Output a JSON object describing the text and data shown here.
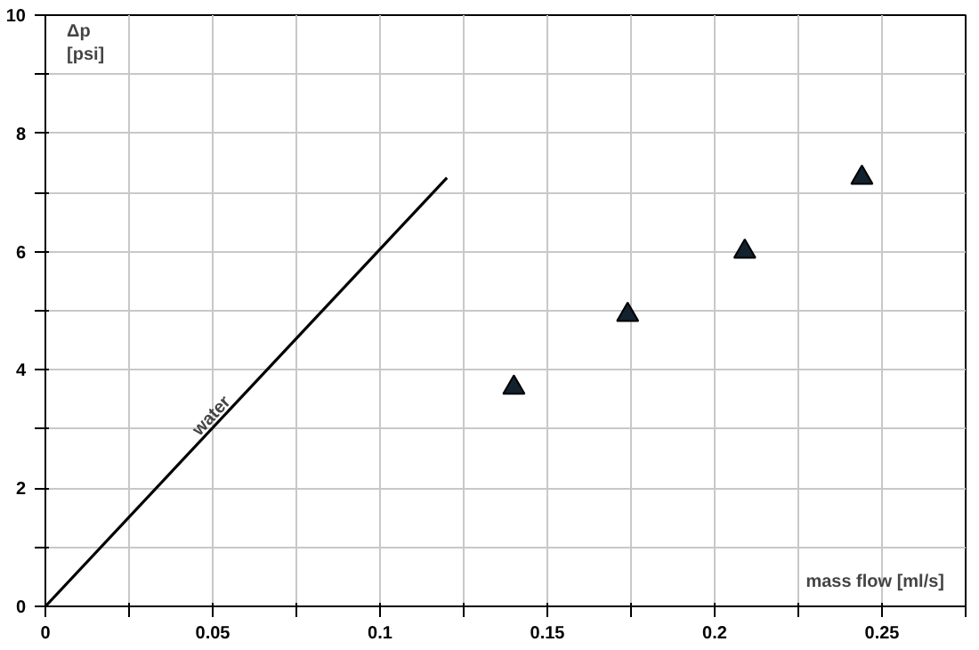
{
  "chart_data": {
    "type": "scatter",
    "xlabel": "mass flow [ml/s]",
    "ylabel": "Δp\n[psi]",
    "series": [
      {
        "type": "line",
        "x": [
          0,
          0.12
        ],
        "values": [
          0,
          7.25
        ],
        "color": "#000000"
      },
      {
        "x": [
          0.14,
          0.174,
          0.209,
          0.244
        ],
        "values": [
          3.7,
          4.93,
          6.0,
          7.25
        ],
        "color": "#12222e",
        "marker": "triangle"
      }
    ],
    "annotations": [
      {
        "text": "water",
        "x": 0.052,
        "y": 3.1
      }
    ],
    "xlim": [
      0,
      0.275
    ],
    "ylim": [
      0,
      10
    ],
    "xticks": [
      0,
      {
        "value": 0.025,
        "label": null
      },
      0.05,
      {
        "value": 0.075,
        "label": null
      },
      0.1,
      {
        "value": 0.125,
        "label": null
      },
      0.15,
      {
        "value": 0.175,
        "label": null
      },
      0.2,
      {
        "value": 0.225,
        "label": null
      },
      0.25,
      {
        "value": 0.275,
        "label": null
      }
    ],
    "yticks": [
      0,
      {
        "value": 1,
        "label": null
      },
      2,
      {
        "value": 3,
        "label": null
      },
      4,
      {
        "value": 5,
        "label": null
      },
      6,
      {
        "value": 7,
        "label": null
      },
      8,
      {
        "value": 9,
        "label": null
      },
      10
    ],
    "grid": true
  }
}
